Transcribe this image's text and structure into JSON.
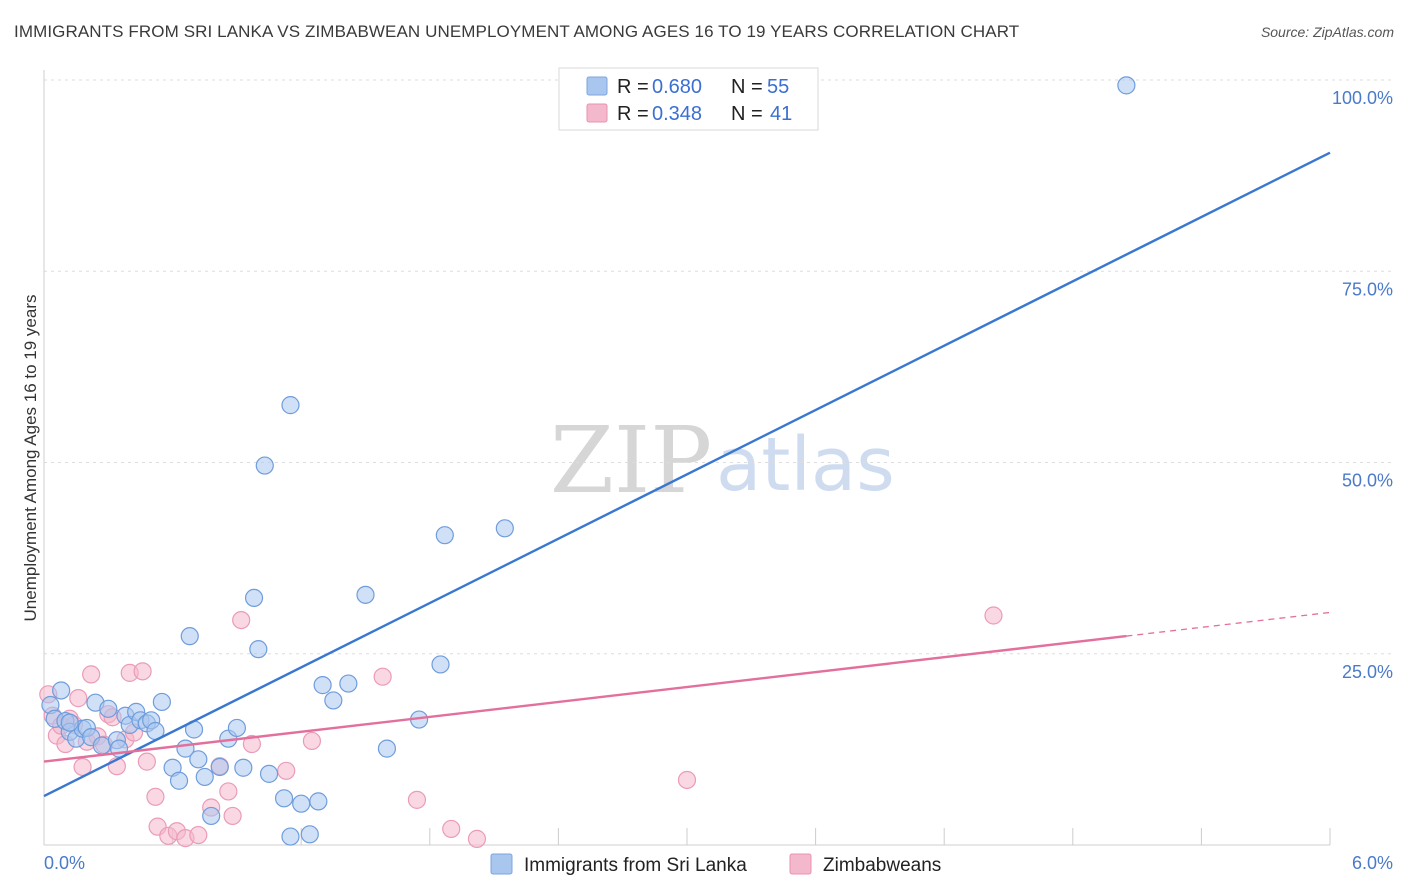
{
  "header": {
    "title": "IMMIGRANTS FROM SRI LANKA VS ZIMBABWEAN UNEMPLOYMENT AMONG AGES 16 TO 19 YEARS CORRELATION CHART",
    "source": "Source: ZipAtlas.com"
  },
  "watermark": {
    "zip": "ZIP",
    "atlas": "atlas"
  },
  "legend": {
    "r_label": "R =",
    "n_label": "N =",
    "rows": [
      {
        "r": "0.680",
        "n": "55"
      },
      {
        "r": "0.348",
        "n": "41"
      }
    ]
  },
  "chart_data": {
    "type": "scatter",
    "title": "IMMIGRANTS FROM SRI LANKA VS ZIMBABWEAN UNEMPLOYMENT AMONG AGES 16 TO 19 YEARS CORRELATION CHART",
    "xlabel": "",
    "ylabel": "Unemployment Among Ages 16 to 19 years",
    "xlim": [
      0,
      6
    ],
    "ylim": [
      0,
      100
    ],
    "x_tick_labels": [
      "0.0%",
      "6.0%"
    ],
    "y_tick_labels": [
      {
        "value": 25,
        "label": "25.0%"
      },
      {
        "value": 50,
        "label": "50.0%"
      },
      {
        "value": 75,
        "label": "75.0%"
      },
      {
        "value": 100,
        "label": "100.0%"
      }
    ],
    "colors": {
      "blue": "#3a78d0",
      "blue_fill": "#a9c6ee",
      "pink": "#e36f9c",
      "pink_fill": "#f4b8cc"
    },
    "series": [
      {
        "name": "Immigrants from Sri Lanka",
        "R": 0.68,
        "N": 55,
        "trend": {
          "x0": 0,
          "y0": 6.4,
          "x1": 6,
          "y1": 90.5,
          "dash_from": null
        },
        "points": [
          [
            0.03,
            18.3
          ],
          [
            0.05,
            16.5
          ],
          [
            0.1,
            16.2
          ],
          [
            0.12,
            14.8
          ],
          [
            0.15,
            13.9
          ],
          [
            0.18,
            15.2
          ],
          [
            0.2,
            15.3
          ],
          [
            0.22,
            14.1
          ],
          [
            0.24,
            18.6
          ],
          [
            0.27,
            13.0
          ],
          [
            0.3,
            17.8
          ],
          [
            0.34,
            13.7
          ],
          [
            0.35,
            12.6
          ],
          [
            0.38,
            16.9
          ],
          [
            0.4,
            15.7
          ],
          [
            0.43,
            17.4
          ],
          [
            0.45,
            16.3
          ],
          [
            0.48,
            15.9
          ],
          [
            0.5,
            16.3
          ],
          [
            0.52,
            14.9
          ],
          [
            0.55,
            18.7
          ],
          [
            0.6,
            10.1
          ],
          [
            0.63,
            8.4
          ],
          [
            0.66,
            12.6
          ],
          [
            0.7,
            15.1
          ],
          [
            0.72,
            11.2
          ],
          [
            0.75,
            8.9
          ],
          [
            0.78,
            3.8
          ],
          [
            0.82,
            10.2
          ],
          [
            0.86,
            13.9
          ],
          [
            0.9,
            15.3
          ],
          [
            0.93,
            10.1
          ],
          [
            0.98,
            32.3
          ],
          [
            1.0,
            25.6
          ],
          [
            1.05,
            9.3
          ],
          [
            1.12,
            6.1
          ],
          [
            1.15,
            1.1
          ],
          [
            1.2,
            5.4
          ],
          [
            1.24,
            1.4
          ],
          [
            1.28,
            5.7
          ],
          [
            1.3,
            20.9
          ],
          [
            1.35,
            18.9
          ],
          [
            1.42,
            21.1
          ],
          [
            1.5,
            32.7
          ],
          [
            1.6,
            12.6
          ],
          [
            1.75,
            16.4
          ],
          [
            1.85,
            23.6
          ],
          [
            0.68,
            27.3
          ],
          [
            1.03,
            49.6
          ],
          [
            1.15,
            57.5
          ],
          [
            1.87,
            40.5
          ],
          [
            2.15,
            41.4
          ],
          [
            5.05,
            99.3
          ],
          [
            0.08,
            20.2
          ],
          [
            0.12,
            16.0
          ]
        ]
      },
      {
        "name": "Zimbabweans",
        "R": 0.348,
        "N": 41,
        "trend": {
          "x0": 0,
          "y0": 10.9,
          "x1": 6,
          "y1": 30.4,
          "dash_from": 5.05
        },
        "points": [
          [
            0.02,
            19.7
          ],
          [
            0.04,
            16.9
          ],
          [
            0.06,
            14.3
          ],
          [
            0.08,
            15.6
          ],
          [
            0.1,
            13.2
          ],
          [
            0.12,
            16.5
          ],
          [
            0.14,
            15.7
          ],
          [
            0.16,
            19.2
          ],
          [
            0.18,
            10.2
          ],
          [
            0.2,
            13.5
          ],
          [
            0.22,
            22.3
          ],
          [
            0.25,
            14.2
          ],
          [
            0.28,
            13.1
          ],
          [
            0.3,
            17.1
          ],
          [
            0.32,
            16.7
          ],
          [
            0.34,
            10.3
          ],
          [
            0.38,
            13.8
          ],
          [
            0.4,
            22.5
          ],
          [
            0.42,
            14.7
          ],
          [
            0.46,
            22.7
          ],
          [
            0.48,
            10.9
          ],
          [
            0.52,
            6.3
          ],
          [
            0.53,
            2.4
          ],
          [
            0.58,
            1.2
          ],
          [
            0.62,
            1.8
          ],
          [
            0.66,
            0.9
          ],
          [
            0.72,
            1.3
          ],
          [
            0.78,
            4.9
          ],
          [
            0.82,
            10.3
          ],
          [
            0.86,
            7.0
          ],
          [
            0.88,
            3.8
          ],
          [
            0.92,
            29.4
          ],
          [
            0.97,
            13.2
          ],
          [
            1.13,
            9.7
          ],
          [
            1.25,
            13.6
          ],
          [
            1.58,
            22.0
          ],
          [
            1.74,
            5.9
          ],
          [
            1.9,
            2.1
          ],
          [
            2.02,
            0.8
          ],
          [
            3.0,
            8.5
          ],
          [
            4.43,
            30.0
          ]
        ]
      }
    ]
  }
}
